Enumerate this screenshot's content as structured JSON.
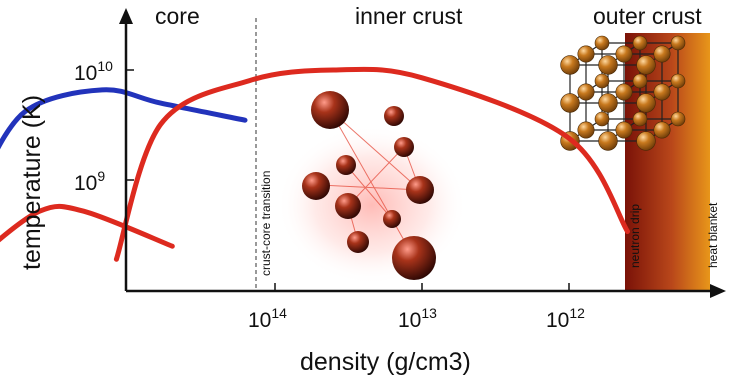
{
  "chart_data": {
    "type": "line",
    "title": "",
    "xlabel": "density (g/cm3)",
    "ylabel": "temperature (K)",
    "x_scale": "log, decreasing left to right",
    "y_scale": "log",
    "x_ticks": [
      {
        "base": "10",
        "exp": "14",
        "value": 100000000000000.0
      },
      {
        "base": "10",
        "exp": "13",
        "value": 10000000000000.0
      },
      {
        "base": "10",
        "exp": "12",
        "value": 1000000000000.0
      }
    ],
    "y_ticks": [
      {
        "base": "10",
        "exp": "10",
        "value": 10000000000.0
      },
      {
        "base": "10",
        "exp": "9",
        "value": 1000000000.0
      }
    ],
    "regions": {
      "core": "core",
      "inner_crust": "inner crust",
      "outer_crust": "outer crust"
    },
    "annotations": {
      "transition": "crust-core transition",
      "neutron_drip": "neutron drip",
      "heat_blanket": "heat blanket"
    },
    "series": [
      {
        "color": "#2233bb",
        "points": [
          [
            1e+16,
            1000000000.0
          ],
          [
            5000000000000000.0,
            4200000000.0
          ],
          [
            1500000000000000.0,
            6600000000.0
          ],
          [
            600000000000000.0,
            5000000000.0
          ],
          [
            160000000000000.0,
            3500000000.0
          ]
        ]
      },
      {
        "color": "#dd2a1f",
        "points": [
          [
            1200000000000000.0,
            190000000.0
          ],
          [
            600000000000000.0,
            3200000000.0
          ],
          [
            150000000000000.0,
            8000000000.0
          ],
          [
            40000000000000.0,
            10000000000.0
          ],
          [
            10000000000000.0,
            8500000000.0
          ],
          [
            1000000000000.0,
            2400000000.0
          ],
          [
            400000000000.0,
            340000000.0
          ]
        ]
      },
      {
        "color": "#dd2a1f",
        "points": [
          [
            1e+16,
            210000000.0
          ],
          [
            4000000000000000.0,
            520000000.0
          ],
          [
            2000000000000000.0,
            520000000.0
          ],
          [
            500000000000000.0,
            250000000.0
          ]
        ]
      }
    ],
    "colors": {
      "core_curve": "#2233bb",
      "crust_curve": "#dd2a1f",
      "outer_crust_dark": "#7a1208",
      "outer_crust_light": "#e8961a",
      "nucleus": "#8a2a12",
      "lattice_atom": "#c8791e"
    }
  }
}
